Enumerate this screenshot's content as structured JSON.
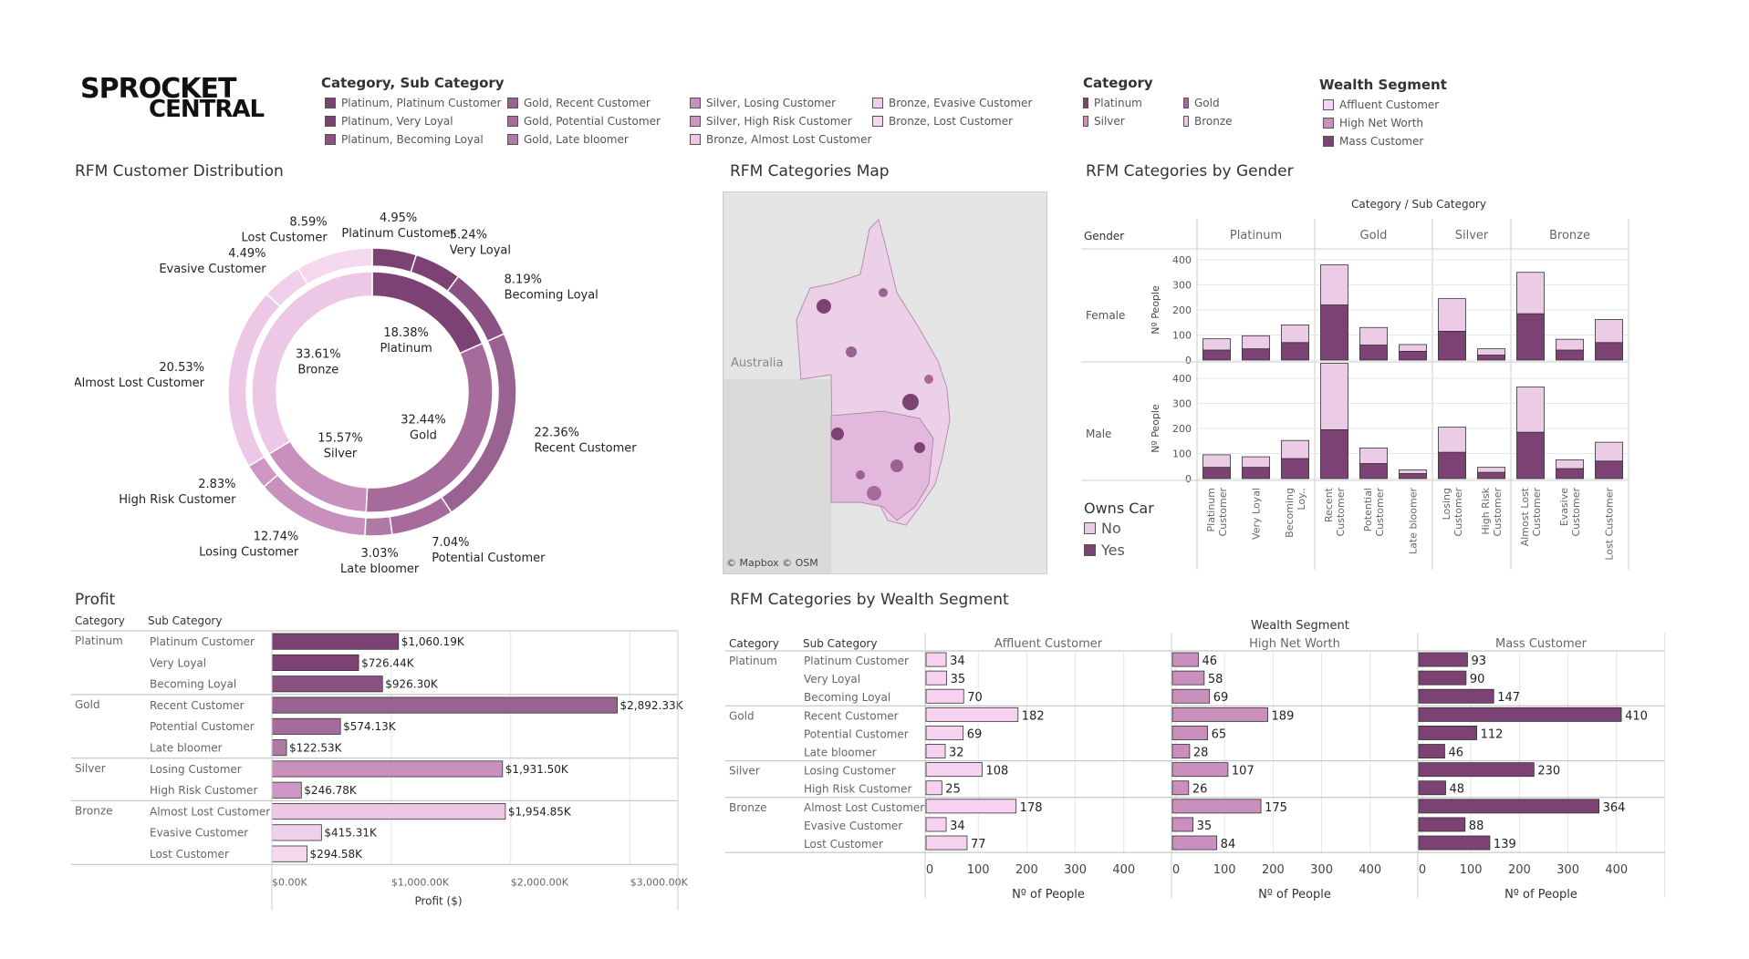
{
  "logo": {
    "line1": "SPROCKET",
    "line2": "CENTRAL"
  },
  "colors": {
    "platinum": "#7b4273",
    "gold": "#a66a9b",
    "silver": "#c98fbd",
    "bronze": "#ecc8e6",
    "pl_platinum": "#7b4273",
    "pl_very_loyal": "#7b4273",
    "pl_becoming_loyal": "#8a5283",
    "gold_recent": "#9a6291",
    "gold_potential": "#a66a9b",
    "gold_late": "#b07aa6",
    "silver_losing": "#c98fbd",
    "silver_high_risk": "#cf95c4",
    "bronze_almost_lost": "#ecc8e6",
    "bronze_evasive": "#efcfe9",
    "bronze_lost": "#f3d8ee",
    "affluent": "#f6d2f0",
    "hnw": "#c98fbd",
    "mass": "#7b4273",
    "car_no": "#eccbe6",
    "car_yes": "#7b4273",
    "grid": "#e6e6e6"
  },
  "legend_category_sub": {
    "title": "Category, Sub Category",
    "columns": [
      [
        "Platinum, Platinum Customer",
        "Platinum, Very Loyal",
        "Platinum, Becoming Loyal"
      ],
      [
        "Gold, Recent Customer",
        "Gold, Potential Customer",
        "Gold, Late bloomer"
      ],
      [
        "Silver, Losing Customer",
        "Silver, High Risk Customer",
        "Bronze, Almost Lost Customer"
      ],
      [
        "Bronze, Evasive Customer",
        "Bronze, Lost Customer"
      ]
    ],
    "column_colors": [
      [
        "#7b4273",
        "#7b4273",
        "#8a5283"
      ],
      [
        "#9a6291",
        "#a66a9b",
        "#b07aa6"
      ],
      [
        "#c98fbd",
        "#cf95c4",
        "#ecc8e6"
      ],
      [
        "#efcfe9",
        "#f3d8ee"
      ]
    ]
  },
  "legend_category": {
    "title": "Category",
    "items": [
      "Platinum",
      "Gold",
      "Silver",
      "Bronze"
    ],
    "colors": [
      "#7b4273",
      "#a66a9b",
      "#c98fbd",
      "#ecc8e6"
    ]
  },
  "legend_wealth": {
    "title": "Wealth Segment",
    "items": [
      "Affluent Customer",
      "High Net Worth",
      "Mass Customer"
    ],
    "colors": [
      "#f6d2f0",
      "#c98fbd",
      "#7b4273"
    ]
  },
  "titles": {
    "distribution": "RFM Customer Distribution",
    "map": "RFM Categories Map",
    "gender": "RFM Categories by Gender",
    "profit": "Profit",
    "wealth": "RFM Categories by Wealth Segment"
  },
  "map": {
    "country_label": "Australia",
    "attribution": "© Mapbox © OSM"
  },
  "owns_car": {
    "title": "Owns Car",
    "items": [
      "No",
      "Yes"
    ]
  },
  "chart_data": [
    {
      "type": "pie",
      "name": "RFM Customer Distribution",
      "inner": {
        "labels": [
          "Platinum",
          "Gold",
          "Silver",
          "Bronze"
        ],
        "values": [
          18.38,
          32.44,
          15.57,
          33.61
        ],
        "display": [
          "18.38%",
          "32.44%",
          "15.57%",
          "33.61%"
        ]
      },
      "outer": {
        "labels": [
          "Platinum Customer",
          "Very Loyal",
          "Becoming Loyal",
          "Recent Customer",
          "Potential Customer",
          "Late bloomer",
          "Losing Customer",
          "High Risk Customer",
          "Almost Lost Customer",
          "Evasive Customer",
          "Lost Customer"
        ],
        "values": [
          4.95,
          5.24,
          8.19,
          22.36,
          7.04,
          3.03,
          12.74,
          2.83,
          20.53,
          4.49,
          8.59
        ],
        "display": [
          "4.95%",
          "5.24%",
          "8.19%",
          "22.36%",
          "7.04%",
          "3.03%",
          "12.74%",
          "2.83%",
          "20.53%",
          "4.49%",
          "8.59%"
        ]
      }
    },
    {
      "type": "bar",
      "name": "RFM Categories by Gender",
      "column_header": "Category / Sub Category",
      "row_header": "Gender",
      "ylabel": "Nº People",
      "ylim": [
        0,
        400
      ],
      "yticks": [
        0,
        100,
        200,
        300,
        400
      ],
      "groups": [
        "Platinum",
        "Gold",
        "Silver",
        "Bronze"
      ],
      "group_sizes": [
        3,
        3,
        2,
        3
      ],
      "categories": [
        "Platinum Customer",
        "Very Loyal",
        "Becoming Loy..",
        "Recent Customer",
        "Potential Customer",
        "Late bloomer",
        "Losing Customer",
        "High Risk Customer",
        "Almost Lost Customer",
        "Evasive Customer",
        "Lost Customer"
      ],
      "panels": [
        {
          "gender": "Female",
          "series": [
            {
              "name": "Yes",
              "values": [
                40,
                45,
                70,
                220,
                60,
                35,
                115,
                20,
                185,
                40,
                70
              ]
            },
            {
              "name": "No",
              "values": [
                45,
                52,
                70,
                160,
                70,
                27,
                130,
                25,
                165,
                43,
                92
              ]
            }
          ]
        },
        {
          "gender": "Male",
          "series": [
            {
              "name": "Yes",
              "values": [
                45,
                45,
                80,
                195,
                60,
                20,
                105,
                25,
                185,
                40,
                70
              ]
            },
            {
              "name": "No",
              "values": [
                50,
                42,
                72,
                265,
                62,
                15,
                100,
                20,
                180,
                35,
                75
              ]
            }
          ]
        }
      ]
    },
    {
      "type": "bar",
      "name": "Profit",
      "orientation": "horizontal",
      "column_headers": [
        "Category",
        "Sub Category"
      ],
      "rows": [
        {
          "category": "Platinum",
          "sub": "Platinum Customer",
          "value": 1060.19,
          "label": "$1,060.19K"
        },
        {
          "category": "",
          "sub": "Very Loyal",
          "value": 726.44,
          "label": "$726.44K"
        },
        {
          "category": "",
          "sub": "Becoming Loyal",
          "value": 926.3,
          "label": "$926.30K"
        },
        {
          "category": "Gold",
          "sub": "Recent Customer",
          "value": 2892.33,
          "label": "$2,892.33K"
        },
        {
          "category": "",
          "sub": "Potential Customer",
          "value": 574.13,
          "label": "$574.13K"
        },
        {
          "category": "",
          "sub": "Late bloomer",
          "value": 122.53,
          "label": "$122.53K"
        },
        {
          "category": "Silver",
          "sub": "Losing Customer",
          "value": 1931.5,
          "label": "$1,931.50K"
        },
        {
          "category": "",
          "sub": "High Risk Customer",
          "value": 246.78,
          "label": "$246.78K"
        },
        {
          "category": "Bronze",
          "sub": "Almost Lost Customer",
          "value": 1954.85,
          "label": "$1,954.85K"
        },
        {
          "category": "",
          "sub": "Evasive Customer",
          "value": 415.31,
          "label": "$415.31K"
        },
        {
          "category": "",
          "sub": "Lost Customer",
          "value": 294.58,
          "label": "$294.58K"
        }
      ],
      "group_starts": [
        0,
        3,
        6,
        8
      ],
      "xlabel": "Profit ($)",
      "xlim": [
        0,
        3400
      ],
      "xticks": [
        0,
        1000,
        2000,
        3000
      ],
      "xtick_labels": [
        "$0.00K",
        "$1,000.00K",
        "$2,000.00K",
        "$3,000.00K"
      ]
    },
    {
      "type": "bar",
      "name": "RFM Categories by Wealth Segment",
      "orientation": "horizontal",
      "header": "Wealth Segment",
      "column_headers": [
        "Category",
        "Sub Category"
      ],
      "categories": [
        "Platinum",
        "",
        "",
        "Gold",
        "",
        "",
        "Silver",
        "",
        "Bronze",
        "",
        ""
      ],
      "subcategories": [
        "Platinum Customer",
        "Very Loyal",
        "Becoming Loyal",
        "Recent Customer",
        "Potential Customer",
        "Late bloomer",
        "Losing Customer",
        "High Risk Customer",
        "Almost Lost Customer",
        "Evasive Customer",
        "Lost Customer"
      ],
      "group_starts": [
        0,
        3,
        6,
        8
      ],
      "series": [
        {
          "name": "Affluent Customer",
          "values": [
            34,
            35,
            70,
            182,
            69,
            32,
            108,
            25,
            178,
            34,
            77
          ]
        },
        {
          "name": "High Net Worth",
          "values": [
            46,
            58,
            69,
            189,
            65,
            28,
            107,
            26,
            175,
            35,
            84
          ]
        },
        {
          "name": "Mass Customer",
          "values": [
            93,
            90,
            147,
            410,
            112,
            46,
            230,
            48,
            364,
            88,
            139
          ]
        }
      ],
      "xlabel": "Nº of People",
      "xlim": [
        0,
        470
      ],
      "xticks": [
        0,
        100,
        200,
        300,
        400
      ]
    }
  ]
}
